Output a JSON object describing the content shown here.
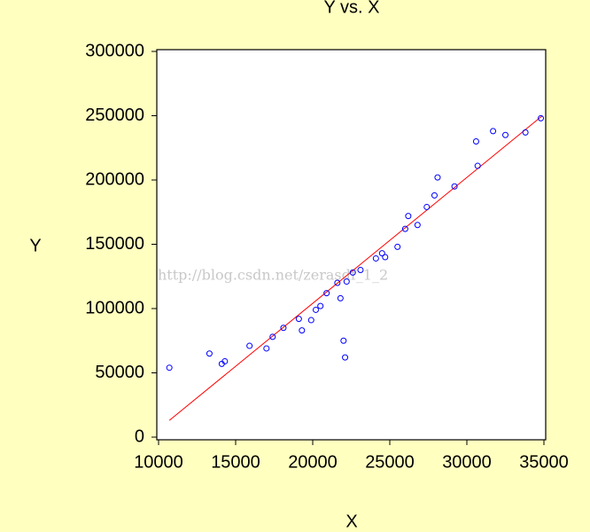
{
  "chart_data": {
    "type": "scatter",
    "title": "Y vs. X",
    "x_label": "X",
    "y_label": "Y",
    "watermark": "http://blog.csdn.net/zerasdf_1_2",
    "xlim": [
      10000,
      35000
    ],
    "ylim": [
      0,
      300000
    ],
    "xticks": [
      10000,
      15000,
      20000,
      25000,
      30000,
      35000
    ],
    "yticks": [
      0,
      50000,
      100000,
      150000,
      200000,
      250000,
      300000
    ],
    "points": {
      "color": "#0000ff",
      "x": [
        10700,
        13300,
        14100,
        14300,
        15900,
        17000,
        17400,
        18100,
        19100,
        19300,
        19900,
        20200,
        20500,
        20900,
        21600,
        21800,
        22000,
        22100,
        22200,
        22600,
        23100,
        24100,
        24500,
        24700,
        25500,
        26000,
        26200,
        26800,
        27400,
        27900,
        28100,
        29200,
        30600,
        30700,
        31700,
        32500,
        33800,
        34800
      ],
      "y": [
        54000,
        65000,
        57000,
        59000,
        71000,
        69000,
        78000,
        85000,
        92000,
        83000,
        91000,
        99000,
        102000,
        112000,
        120000,
        108000,
        75000,
        62000,
        121000,
        128000,
        130000,
        139000,
        143000,
        140000,
        148000,
        162000,
        172000,
        165000,
        179000,
        188000,
        202000,
        195000,
        230000,
        211000,
        238000,
        235000,
        237000,
        248000
      ]
    },
    "fit": {
      "color": "#ff0000",
      "x": [
        10700,
        34900
      ],
      "y": [
        13000,
        250000
      ]
    }
  }
}
